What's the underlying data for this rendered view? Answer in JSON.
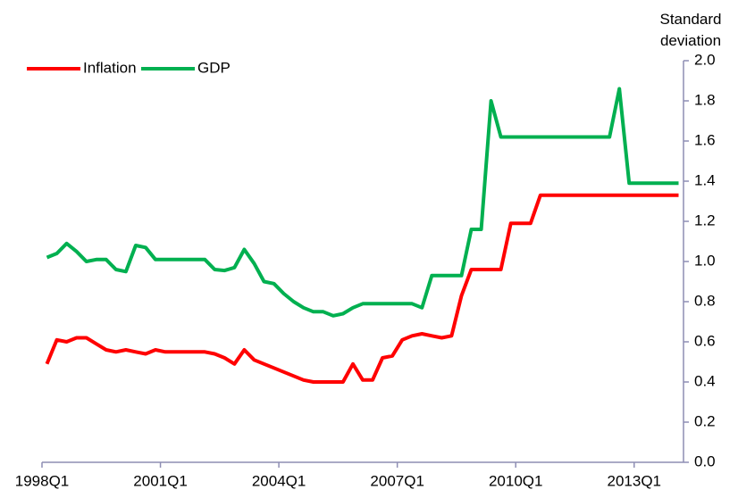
{
  "chart_data": {
    "type": "line",
    "y_label": "Standard deviation",
    "categories": [
      "1998Q1",
      null,
      null,
      null,
      null,
      null,
      null,
      null,
      null,
      null,
      null,
      null,
      "2001Q1",
      null,
      null,
      null,
      null,
      null,
      null,
      null,
      null,
      null,
      null,
      null,
      "2004Q1",
      null,
      null,
      null,
      null,
      null,
      null,
      null,
      null,
      null,
      null,
      null,
      "2007Q1",
      null,
      null,
      null,
      null,
      null,
      null,
      null,
      null,
      null,
      null,
      null,
      "2010Q1",
      null,
      null,
      null,
      null,
      null,
      null,
      null,
      null,
      null,
      null,
      null,
      "2013Q1",
      null,
      null,
      null,
      null
    ],
    "series": [
      {
        "name": "Inflation",
        "color": "#ff0000",
        "values": [
          0.49,
          0.61,
          0.6,
          0.62,
          0.62,
          0.59,
          0.56,
          0.55,
          0.56,
          0.55,
          0.54,
          0.56,
          0.55,
          0.55,
          0.55,
          0.55,
          0.55,
          0.54,
          0.52,
          0.49,
          0.56,
          0.51,
          0.49,
          0.47,
          0.45,
          0.43,
          0.41,
          0.4,
          0.4,
          0.4,
          0.4,
          0.49,
          0.41,
          0.41,
          0.52,
          0.53,
          0.61,
          0.63,
          0.64,
          0.63,
          0.62,
          0.63,
          0.83,
          0.96,
          0.96,
          0.96,
          0.96,
          1.19,
          1.19,
          1.19,
          1.33,
          1.33,
          1.33,
          1.33,
          1.33,
          1.33,
          1.33,
          1.33,
          1.33,
          1.33,
          1.33,
          1.33,
          1.33,
          1.33,
          1.33
        ]
      },
      {
        "name": "GDP",
        "color": "#00b050",
        "values": [
          1.02,
          1.04,
          1.09,
          1.05,
          1.0,
          1.01,
          1.01,
          0.96,
          0.95,
          1.08,
          1.07,
          1.01,
          1.01,
          1.01,
          1.01,
          1.01,
          1.01,
          0.96,
          0.955,
          0.97,
          1.06,
          0.99,
          0.9,
          0.89,
          0.84,
          0.8,
          0.77,
          0.75,
          0.75,
          0.73,
          0.74,
          0.77,
          0.79,
          0.79,
          0.79,
          0.79,
          0.79,
          0.79,
          0.77,
          0.93,
          0.93,
          0.93,
          0.93,
          1.16,
          1.16,
          1.8,
          1.62,
          1.62,
          1.62,
          1.62,
          1.62,
          1.62,
          1.62,
          1.62,
          1.62,
          1.62,
          1.62,
          1.62,
          1.86,
          1.39,
          1.39,
          1.39,
          1.39,
          1.39,
          1.39
        ]
      }
    ],
    "ylim": [
      0,
      2
    ],
    "yticks": [
      {
        "value": 0,
        "label": "0.0"
      },
      0.2,
      0.4,
      0.6,
      0.8,
      {
        "value": 1,
        "label": "1.0"
      },
      1.2,
      1.4,
      1.6,
      1.8,
      {
        "value": 2,
        "label": "2.0"
      }
    ],
    "axis_color": "#8e8eb4"
  }
}
